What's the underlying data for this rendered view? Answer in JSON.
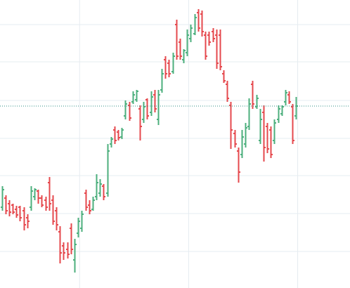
{
  "chart_data": {
    "type": "ohlc",
    "x": [
      0,
      1,
      2,
      3,
      4,
      5,
      6,
      7,
      8,
      9,
      10,
      11,
      12,
      13,
      14,
      15,
      16,
      17,
      18,
      19,
      20,
      21,
      22,
      23,
      24,
      25,
      26,
      27,
      28,
      29,
      30,
      31,
      32,
      33,
      34,
      35,
      36,
      37,
      38,
      39,
      40,
      41,
      42,
      43,
      44,
      45,
      46,
      47,
      48,
      49,
      50,
      51,
      52,
      53,
      54,
      55,
      56,
      57,
      58,
      59,
      60,
      61,
      62,
      63,
      64,
      65,
      66,
      67,
      68,
      69,
      70,
      71,
      72,
      73,
      74,
      75,
      76,
      77,
      78,
      79,
      80,
      81
    ],
    "open": [
      115,
      128,
      120,
      118,
      112,
      115,
      110,
      100,
      115,
      130,
      138,
      128,
      125,
      150,
      125,
      110,
      80,
      60,
      55,
      85,
      40,
      78,
      85,
      135,
      118,
      112,
      130,
      135,
      145,
      135,
      205,
      225,
      222,
      215,
      245,
      260,
      265,
      268,
      255,
      240,
      268,
      250,
      275,
      240,
      282,
      325,
      320,
      308,
      375,
      350,
      325,
      335,
      355,
      362,
      392,
      390,
      360,
      360,
      365,
      360,
      360,
      305,
      290,
      260,
      220,
      195,
      190,
      205,
      230,
      290,
      258,
      210,
      250,
      230,
      225,
      210,
      240,
      248,
      265,
      275,
      258,
      245
    ],
    "high": [
      145,
      132,
      125,
      120,
      117,
      117,
      115,
      105,
      145,
      142,
      140,
      132,
      130,
      158,
      132,
      115,
      88,
      65,
      65,
      92,
      70,
      100,
      110,
      140,
      125,
      130,
      162,
      155,
      148,
      205,
      215,
      230,
      225,
      228,
      267,
      265,
      280,
      282,
      260,
      265,
      270,
      280,
      282,
      282,
      312,
      330,
      325,
      335,
      382,
      355,
      340,
      368,
      375,
      390,
      397,
      395,
      365,
      365,
      370,
      368,
      368,
      310,
      295,
      265,
      225,
      200,
      225,
      235,
      270,
      295,
      275,
      255,
      260,
      235,
      230,
      240,
      260,
      260,
      282,
      280,
      262,
      272
    ],
    "low": [
      110,
      105,
      102,
      105,
      100,
      95,
      82,
      85,
      110,
      125,
      120,
      115,
      110,
      110,
      90,
      82,
      35,
      40,
      42,
      48,
      22,
      72,
      80,
      110,
      105,
      110,
      125,
      130,
      125,
      130,
      200,
      205,
      210,
      212,
      240,
      238,
      262,
      265,
      210,
      235,
      240,
      245,
      250,
      232,
      278,
      298,
      300,
      305,
      325,
      325,
      320,
      330,
      350,
      360,
      365,
      358,
      325,
      345,
      350,
      312,
      310,
      292,
      265,
      198,
      200,
      150,
      185,
      200,
      225,
      255,
      255,
      205,
      180,
      192,
      185,
      205,
      235,
      245,
      260,
      262,
      205,
      240
    ],
    "close": [
      140,
      110,
      108,
      108,
      104,
      100,
      90,
      95,
      138,
      140,
      128,
      118,
      115,
      120,
      95,
      90,
      50,
      50,
      48,
      55,
      62,
      95,
      105,
      115,
      110,
      125,
      150,
      148,
      130,
      195,
      212,
      210,
      214,
      225,
      262,
      242,
      275,
      280,
      230,
      258,
      245,
      272,
      255,
      275,
      305,
      305,
      305,
      330,
      330,
      330,
      338,
      360,
      370,
      385,
      370,
      365,
      330,
      350,
      355,
      320,
      315,
      295,
      270,
      225,
      205,
      165,
      215,
      228,
      262,
      262,
      270,
      240,
      200,
      198,
      190,
      235,
      255,
      258,
      278,
      265,
      210,
      259
    ],
    "up_color": "#4caf7d",
    "down_color": "#e5484d",
    "xlim": [
      -0.5,
      95.8
    ],
    "xticks": [
      21.4,
      51.4,
      81.4
    ],
    "ylim": [
      0,
      410
    ],
    "yticks": [
      52,
      106,
      160,
      213,
      267,
      322,
      375
    ],
    "grid": true,
    "last_price_line": true
  }
}
